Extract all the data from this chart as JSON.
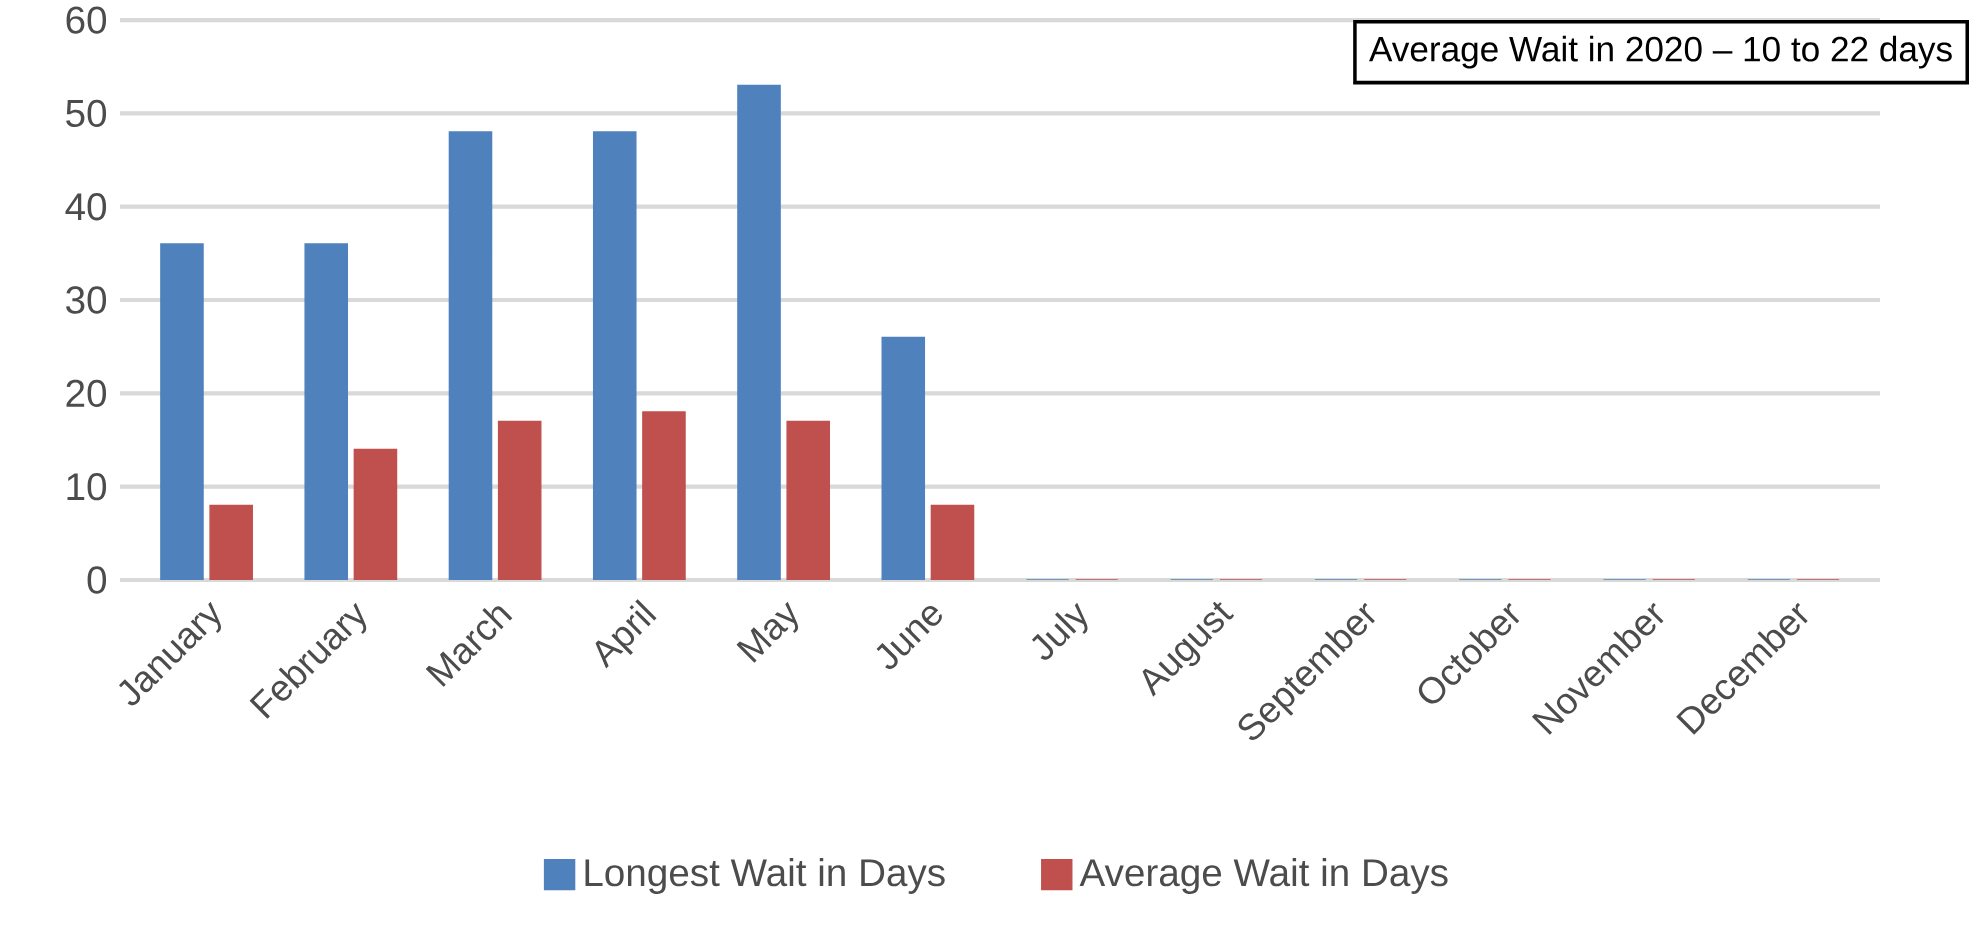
{
  "chart_data": {
    "type": "bar",
    "categories": [
      "January",
      "February",
      "March",
      "April",
      "May",
      "June",
      "July",
      "August",
      "September",
      "October",
      "November",
      "December"
    ],
    "series": [
      {
        "name": "Longest Wait in Days",
        "color": "#4f81bd",
        "values": [
          36,
          36,
          48,
          48,
          53,
          26,
          0,
          0,
          0,
          0,
          0,
          0
        ]
      },
      {
        "name": "Average Wait in Days",
        "color": "#c0504d",
        "values": [
          8,
          14,
          17,
          18,
          17,
          8,
          0,
          0,
          0,
          0,
          0,
          0
        ]
      }
    ],
    "ylim": [
      0,
      60
    ],
    "yticks": [
      0,
      10,
      20,
      30,
      40,
      50,
      60
    ],
    "grid": "y",
    "legend": "bottom",
    "annotations": [
      "Average Wait in 2020 – 10 to 22 days"
    ]
  }
}
